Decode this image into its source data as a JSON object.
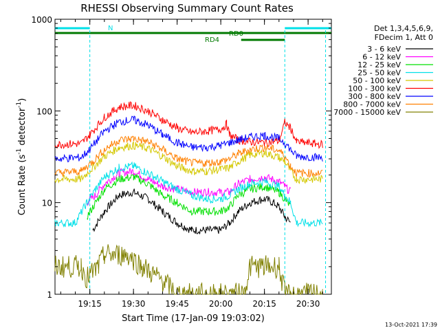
{
  "chart_data": {
    "type": "line",
    "title": "RHESSI Observing Summary Count Rates",
    "xlabel": "Start Time (17-Jan-09 19:03:02)",
    "ylabel_main": "Count Rate (s",
    "ylabel_sup1": "-1",
    "ylabel_mid": " detector",
    "ylabel_sup2": "-1",
    "ylabel_end": ")",
    "y_scale": "log",
    "ylim": [
      1,
      1000
    ],
    "xlim": [
      "19:03:02",
      "20:38:00"
    ],
    "x_ticks": [
      "19:15",
      "19:30",
      "19:45",
      "20:00",
      "20:15",
      "20:30"
    ],
    "y_ticks": [
      "1",
      "10",
      "100",
      "1000"
    ],
    "legend_header": [
      "Det 1,3,4,5,6,9,",
      "FDecim 1, Att 0"
    ],
    "legend_position": "right",
    "timestamp": "13-Oct-2021 17:39",
    "flag_labels": {
      "night": "N",
      "rd0": "RD0",
      "rd4": "RD4"
    },
    "colors": {
      "cyan": "#00e0e8",
      "green_flag": "#007a00",
      "night_dash": "#00e0e8"
    },
    "series": [
      {
        "name": "3 - 6 keV",
        "color": "#000000",
        "points": [
          [
            "19:03",
            null
          ],
          [
            "19:16",
            5
          ],
          [
            "19:20",
            8
          ],
          [
            "19:25",
            12
          ],
          [
            "19:30",
            13
          ],
          [
            "19:35",
            11
          ],
          [
            "19:40",
            8
          ],
          [
            "19:45",
            6
          ],
          [
            "19:50",
            5
          ],
          [
            "19:55",
            5
          ],
          [
            "20:00",
            5
          ],
          [
            "20:03",
            6
          ],
          [
            "20:06",
            8
          ],
          [
            "20:10",
            10
          ],
          [
            "20:15",
            11
          ],
          [
            "20:18",
            10
          ],
          [
            "20:20",
            9
          ],
          [
            "20:22",
            7
          ],
          [
            "20:24",
            6
          ],
          [
            "20:25",
            null
          ]
        ]
      },
      {
        "name": "6 - 12 keV",
        "color": "#ff00ff",
        "points": [
          [
            "19:03",
            null
          ],
          [
            "19:14",
            10
          ],
          [
            "19:17",
            12
          ],
          [
            "19:20",
            16
          ],
          [
            "19:25",
            21
          ],
          [
            "19:30",
            22
          ],
          [
            "19:35",
            18
          ],
          [
            "19:40",
            15
          ],
          [
            "19:45",
            14
          ],
          [
            "19:50",
            13
          ],
          [
            "19:55",
            13
          ],
          [
            "20:00",
            13
          ],
          [
            "20:03",
            13
          ],
          [
            "20:06",
            16
          ],
          [
            "20:10",
            18
          ],
          [
            "20:15",
            19
          ],
          [
            "20:20",
            17
          ],
          [
            "20:22",
            15
          ],
          [
            "20:24",
            13
          ],
          [
            "20:25",
            null
          ]
        ]
      },
      {
        "name": "12 - 25 keV",
        "color": "#00e000",
        "points": [
          [
            "19:03",
            null
          ],
          [
            "19:14",
            7
          ],
          [
            "19:17",
            10
          ],
          [
            "19:20",
            14
          ],
          [
            "19:25",
            18
          ],
          [
            "19:30",
            19
          ],
          [
            "19:35",
            16
          ],
          [
            "19:40",
            12
          ],
          [
            "19:45",
            10
          ],
          [
            "19:50",
            8
          ],
          [
            "19:55",
            8
          ],
          [
            "20:00",
            8
          ],
          [
            "20:03",
            9
          ],
          [
            "20:06",
            12
          ],
          [
            "20:10",
            14
          ],
          [
            "20:15",
            15
          ],
          [
            "20:20",
            13
          ],
          [
            "20:22",
            11
          ],
          [
            "20:24",
            9
          ],
          [
            "20:25",
            null
          ]
        ]
      },
      {
        "name": "25 - 50 keV",
        "color": "#00e0e8",
        "points": [
          [
            "19:03",
            6
          ],
          [
            "19:10",
            6
          ],
          [
            "19:14",
            10
          ],
          [
            "19:17",
            14
          ],
          [
            "19:20",
            19
          ],
          [
            "19:25",
            24
          ],
          [
            "19:30",
            25
          ],
          [
            "19:35",
            21
          ],
          [
            "19:40",
            17
          ],
          [
            "19:45",
            14
          ],
          [
            "19:50",
            12
          ],
          [
            "19:55",
            11
          ],
          [
            "20:00",
            11
          ],
          [
            "20:03",
            12
          ],
          [
            "20:06",
            14
          ],
          [
            "20:10",
            16
          ],
          [
            "20:15",
            17
          ],
          [
            "20:20",
            15
          ],
          [
            "20:22",
            12
          ],
          [
            "20:24",
            10
          ],
          [
            "20:26",
            6
          ],
          [
            "20:35",
            6
          ]
        ]
      },
      {
        "name": "50 - 100 keV",
        "color": "#d4c800",
        "points": [
          [
            "19:03",
            18
          ],
          [
            "19:12",
            18
          ],
          [
            "19:16",
            24
          ],
          [
            "19:20",
            32
          ],
          [
            "19:25",
            40
          ],
          [
            "19:30",
            42
          ],
          [
            "19:35",
            39
          ],
          [
            "19:40",
            32
          ],
          [
            "19:45",
            25
          ],
          [
            "19:50",
            22
          ],
          [
            "19:55",
            22
          ],
          [
            "20:00",
            23
          ],
          [
            "20:03",
            24
          ],
          [
            "20:06",
            28
          ],
          [
            "20:10",
            33
          ],
          [
            "20:15",
            35
          ],
          [
            "20:20",
            31
          ],
          [
            "20:22",
            28
          ],
          [
            "20:24",
            22
          ],
          [
            "20:26",
            18
          ],
          [
            "20:35",
            18
          ]
        ]
      },
      {
        "name": "100 - 300 keV",
        "color": "#ff0000",
        "points": [
          [
            "19:03",
            43
          ],
          [
            "19:12",
            44
          ],
          [
            "19:15",
            55
          ],
          [
            "19:20",
            85
          ],
          [
            "19:25",
            110
          ],
          [
            "19:30",
            115
          ],
          [
            "19:35",
            100
          ],
          [
            "19:40",
            80
          ],
          [
            "19:45",
            65
          ],
          [
            "19:50",
            58
          ],
          [
            "19:55",
            60
          ],
          [
            "20:00",
            63
          ],
          [
            "20:02",
            72
          ],
          [
            "20:03",
            55
          ],
          [
            "20:06",
            48
          ],
          [
            "20:10",
            46
          ],
          [
            "20:15",
            45
          ],
          [
            "20:20",
            47
          ],
          [
            "20:22",
            75
          ],
          [
            "20:24",
            65
          ],
          [
            "20:26",
            46
          ],
          [
            "20:35",
            43
          ]
        ]
      },
      {
        "name": "300 - 800 keV",
        "color": "#0000ff",
        "points": [
          [
            "19:03",
            30
          ],
          [
            "19:12",
            31
          ],
          [
            "19:15",
            38
          ],
          [
            "19:20",
            60
          ],
          [
            "19:25",
            76
          ],
          [
            "19:30",
            80
          ],
          [
            "19:35",
            70
          ],
          [
            "19:40",
            55
          ],
          [
            "19:45",
            45
          ],
          [
            "19:50",
            40
          ],
          [
            "19:55",
            40
          ],
          [
            "20:00",
            42
          ],
          [
            "20:03",
            45
          ],
          [
            "20:06",
            48
          ],
          [
            "20:10",
            52
          ],
          [
            "20:15",
            54
          ],
          [
            "20:20",
            50
          ],
          [
            "20:22",
            45
          ],
          [
            "20:24",
            38
          ],
          [
            "20:26",
            32
          ],
          [
            "20:35",
            31
          ]
        ]
      },
      {
        "name": "800 - 7000 keV",
        "color": "#ff8000",
        "points": [
          [
            "19:03",
            21
          ],
          [
            "19:12",
            22
          ],
          [
            "19:16",
            28
          ],
          [
            "19:20",
            38
          ],
          [
            "19:25",
            48
          ],
          [
            "19:30",
            50
          ],
          [
            "19:35",
            46
          ],
          [
            "19:40",
            38
          ],
          [
            "19:45",
            30
          ],
          [
            "19:50",
            27
          ],
          [
            "19:55",
            27
          ],
          [
            "20:00",
            28
          ],
          [
            "20:03",
            30
          ],
          [
            "20:06",
            34
          ],
          [
            "20:10",
            38
          ],
          [
            "20:15",
            40
          ],
          [
            "20:20",
            37
          ],
          [
            "20:22",
            32
          ],
          [
            "20:24",
            25
          ],
          [
            "20:26",
            21
          ],
          [
            "20:35",
            21
          ]
        ]
      },
      {
        "name": "7000 - 15000 keV",
        "color": "#808000",
        "points": [
          [
            "19:03",
            2
          ],
          [
            "19:12",
            2
          ],
          [
            "19:14",
            1.5
          ],
          [
            "19:18",
            2
          ],
          [
            "19:20",
            2.7
          ],
          [
            "19:28",
            2.7
          ],
          [
            "19:33",
            2
          ],
          [
            "19:40",
            1.4
          ],
          [
            "19:45",
            1
          ],
          [
            "20:08",
            1
          ],
          [
            "20:10",
            2
          ],
          [
            "20:20",
            2
          ],
          [
            "20:22",
            1
          ],
          [
            "20:35",
            1
          ]
        ]
      }
    ],
    "flags": {
      "night_intervals": [
        [
          "19:03",
          "19:15"
        ],
        [
          "20:22",
          "20:38"
        ]
      ],
      "rd0_intervals": [
        [
          "19:03",
          "20:22"
        ],
        [
          "20:22",
          "20:38"
        ]
      ],
      "rd4_intervals": [
        [
          "20:07",
          "20:22"
        ]
      ],
      "night_markers": [
        "19:15",
        "20:22",
        "20:36"
      ]
    }
  }
}
